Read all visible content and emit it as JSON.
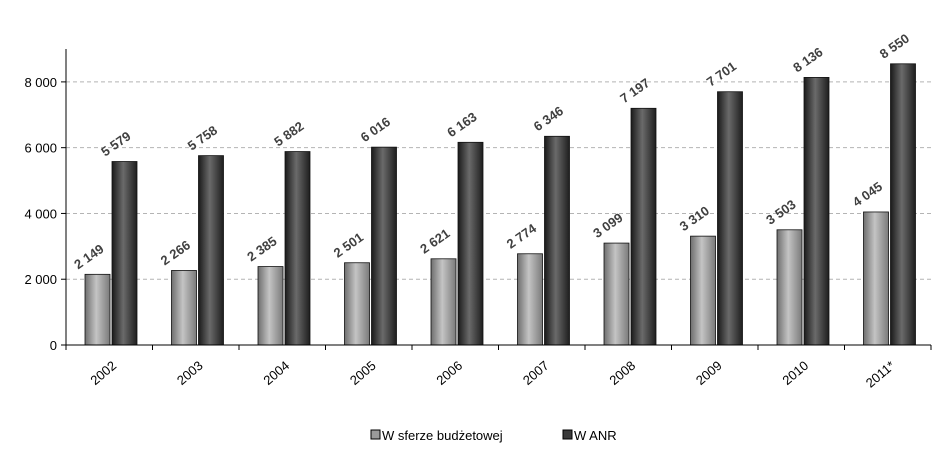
{
  "chart_data": {
    "type": "bar",
    "title": "",
    "xlabel": "",
    "ylabel": "",
    "categories": [
      "2002",
      "2003",
      "2004",
      "2005",
      "2006",
      "2007",
      "2008",
      "2009",
      "2010",
      "2011*"
    ],
    "series": [
      {
        "name": "W sferze budżetowej",
        "values": [
          2149,
          2266,
          2385,
          2501,
          2621,
          2774,
          3099,
          3310,
          3503,
          4045
        ],
        "labels": [
          "2 149",
          "2 266",
          "2 385",
          "2 501",
          "2 621",
          "2 774",
          "3 099",
          "3 310",
          "3 503",
          "4 045"
        ],
        "color": "#9a9a9a"
      },
      {
        "name": "W ANR",
        "values": [
          5579,
          5758,
          5882,
          6016,
          6163,
          6346,
          7197,
          7701,
          8136,
          8550
        ],
        "labels": [
          "5 579",
          "5 758",
          "5 882",
          "6 016",
          "6 163",
          "6 346",
          "7 197",
          "7 701",
          "8 136",
          "8 550"
        ],
        "color": "#3a3a3a"
      }
    ],
    "ylim": [
      0,
      9000
    ],
    "yticks": [
      0,
      2000,
      4000,
      6000,
      8000
    ],
    "ytick_labels": [
      "0",
      "2 000",
      "4 000",
      "6 000",
      "8 000"
    ],
    "grid": true,
    "legend_position": "bottom-center"
  }
}
